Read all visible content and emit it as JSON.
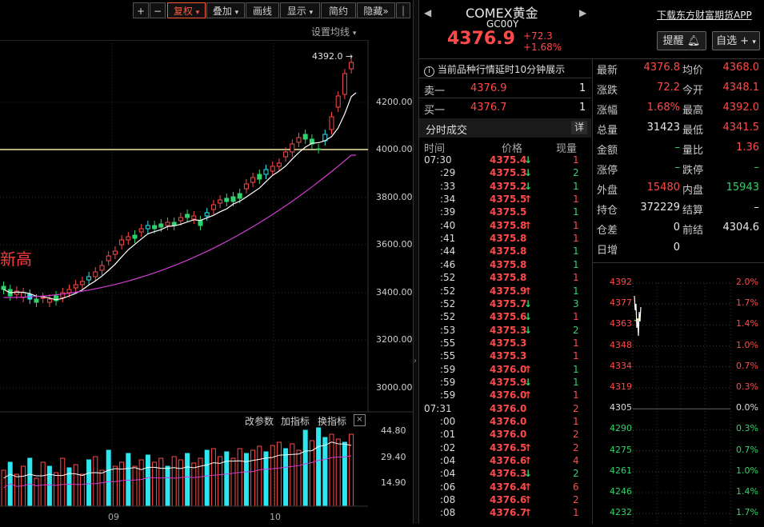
{
  "toolbar": {
    "plus": "+",
    "minus": "−",
    "fuquan": "复权",
    "diejia": "叠加",
    "huaxian": "画线",
    "xianshi": "显示",
    "jianyue": "简约",
    "yincang": "隐藏",
    "more": "»"
  },
  "chart": {
    "settings_label": "设置均线",
    "peak_label": "4392.0",
    "annotation": "新高",
    "price_axis": [
      "4200.00",
      "4000.00",
      "3800.00",
      "3600.00",
      "3400.00",
      "3200.00",
      "3000.00"
    ],
    "indicator_tabs": {
      "change_params": "改参数",
      "add_indicator": "加指标",
      "switch_indicator": "换指标"
    },
    "volume_axis": [
      "44.80",
      "29.40",
      "14.90"
    ],
    "x_labels": [
      "09",
      "10"
    ]
  },
  "quote_header": {
    "name": "COMEX黄金",
    "code": "GC00Y",
    "price": "4376.9",
    "change": "+72.3",
    "change_pct": "+1.68%",
    "download_link": "下载东方财富期货APP",
    "remind_button": "提醒",
    "watchlist_button": "自选"
  },
  "delay_notice": "当前品种行情延时10分钟展示",
  "order_book": [
    {
      "label": "卖一",
      "price": "4376.9",
      "qty": "1"
    },
    {
      "label": "买一",
      "price": "4376.7",
      "qty": "1"
    }
  ],
  "ticks": {
    "title": "分时成交",
    "detail_button": "详",
    "headers": {
      "time": "时间",
      "price": "价格",
      "qty": "现量"
    },
    "rows": [
      {
        "time": "07:30",
        "price": "4375.4",
        "dir": "down",
        "qty": "1",
        "qc": "red"
      },
      {
        "time": ":29",
        "price": "4375.3",
        "dir": "down",
        "qty": "2",
        "qc": "green"
      },
      {
        "time": ":33",
        "price": "4375.2",
        "dir": "down",
        "qty": "1",
        "qc": "green"
      },
      {
        "time": ":34",
        "price": "4375.5",
        "dir": "up",
        "qty": "1",
        "qc": "red"
      },
      {
        "time": ":39",
        "price": "4375.5",
        "dir": "",
        "qty": "1",
        "qc": "green"
      },
      {
        "time": ":40",
        "price": "4375.8",
        "dir": "up",
        "qty": "1",
        "qc": "red"
      },
      {
        "time": ":41",
        "price": "4375.8",
        "dir": "",
        "qty": "1",
        "qc": "red"
      },
      {
        "time": ":44",
        "price": "4375.8",
        "dir": "",
        "qty": "1",
        "qc": "green"
      },
      {
        "time": ":46",
        "price": "4375.8",
        "dir": "",
        "qty": "1",
        "qc": "green"
      },
      {
        "time": ":52",
        "price": "4375.8",
        "dir": "",
        "qty": "1",
        "qc": "red"
      },
      {
        "time": ":52",
        "price": "4375.9",
        "dir": "up",
        "qty": "1",
        "qc": "green"
      },
      {
        "time": ":52",
        "price": "4375.7",
        "dir": "down",
        "qty": "3",
        "qc": "green"
      },
      {
        "time": ":52",
        "price": "4375.6",
        "dir": "down",
        "qty": "1",
        "qc": "red"
      },
      {
        "time": ":53",
        "price": "4375.3",
        "dir": "down",
        "qty": "2",
        "qc": "green"
      },
      {
        "time": ":55",
        "price": "4375.3",
        "dir": "",
        "qty": "1",
        "qc": "red"
      },
      {
        "time": ":55",
        "price": "4375.3",
        "dir": "",
        "qty": "1",
        "qc": "red"
      },
      {
        "time": ":59",
        "price": "4376.0",
        "dir": "up",
        "qty": "1",
        "qc": "green"
      },
      {
        "time": ":59",
        "price": "4375.9",
        "dir": "down",
        "qty": "1",
        "qc": "green"
      },
      {
        "time": ":59",
        "price": "4376.0",
        "dir": "up",
        "qty": "1",
        "qc": "red"
      },
      {
        "time": "07:31",
        "price": "4376.0",
        "dir": "",
        "qty": "2",
        "qc": "red"
      },
      {
        "time": ":00",
        "price": "4376.0",
        "dir": "",
        "qty": "1",
        "qc": "red"
      },
      {
        "time": ":01",
        "price": "4376.0",
        "dir": "",
        "qty": "2",
        "qc": "red"
      },
      {
        "time": ":02",
        "price": "4376.5",
        "dir": "up",
        "qty": "2",
        "qc": "red"
      },
      {
        "time": ":04",
        "price": "4376.6",
        "dir": "up",
        "qty": "4",
        "qc": "red"
      },
      {
        "time": ":04",
        "price": "4376.3",
        "dir": "down",
        "qty": "2",
        "qc": "green"
      },
      {
        "time": ":06",
        "price": "4376.4",
        "dir": "up",
        "qty": "6",
        "qc": "red"
      },
      {
        "time": ":08",
        "price": "4376.6",
        "dir": "up",
        "qty": "2",
        "qc": "red"
      },
      {
        "time": ":08",
        "price": "4376.7",
        "dir": "up",
        "qty": "1",
        "qc": "red"
      }
    ]
  },
  "stats": [
    {
      "l1": "最新",
      "v1": "4376.8",
      "c1": "red",
      "l2": "均价",
      "v2": "4368.0",
      "c2": "red"
    },
    {
      "l1": "涨跌",
      "v1": "72.2",
      "c1": "red",
      "l2": "今开",
      "v2": "4348.1",
      "c2": "red"
    },
    {
      "l1": "涨幅",
      "v1": "1.68%",
      "c1": "red",
      "l2": "最高",
      "v2": "4392.0",
      "c2": "red"
    },
    {
      "l1": "总量",
      "v1": "31423",
      "c1": "white",
      "l2": "最低",
      "v2": "4341.5",
      "c2": "red"
    },
    {
      "l1": "金额",
      "v1": "–",
      "c1": "green",
      "l2": "量比",
      "v2": "1.36",
      "c2": "red"
    },
    {
      "l1": "涨停",
      "v1": "–",
      "c1": "green",
      "l2": "跌停",
      "v2": "–",
      "c2": "green"
    },
    {
      "l1": "外盘",
      "v1": "15480",
      "c1": "red",
      "l2": "内盘",
      "v2": "15943",
      "c2": "green"
    },
    {
      "l1": "持仓",
      "v1": "372229",
      "c1": "white",
      "l2": "结算",
      "v2": "–",
      "c2": "white"
    },
    {
      "l1": "仓差",
      "v1": "0",
      "c1": "white",
      "l2": "前结",
      "v2": "4304.6",
      "c2": "white"
    },
    {
      "l1": "日增",
      "v1": "0",
      "c1": "white",
      "l2": "",
      "v2": "",
      "c2": "white"
    }
  ],
  "mini_chart": {
    "left_axis": [
      "4392",
      "4377",
      "4363",
      "4348",
      "4334",
      "4319",
      "4305",
      "4290",
      "4275",
      "4261",
      "4246",
      "4232"
    ],
    "right_axis": [
      "2.0%",
      "1.7%",
      "1.4%",
      "1.0%",
      "0.7%",
      "0.3%",
      "0.0%",
      "0.3%",
      "0.7%",
      "1.0%",
      "1.4%",
      "1.7%"
    ]
  },
  "colors": {
    "up": "#ff4a4a",
    "down": "#2fd36b",
    "ma_white": "#ffffff",
    "ma_magenta": "#d23cd2",
    "hline": "#f2e9a0",
    "vol_cyan": "#2ee6f0"
  },
  "icons": {
    "info": "info-icon",
    "bell": "bell-icon",
    "left": "chevron-left-icon",
    "right": "chevron-right-icon"
  }
}
